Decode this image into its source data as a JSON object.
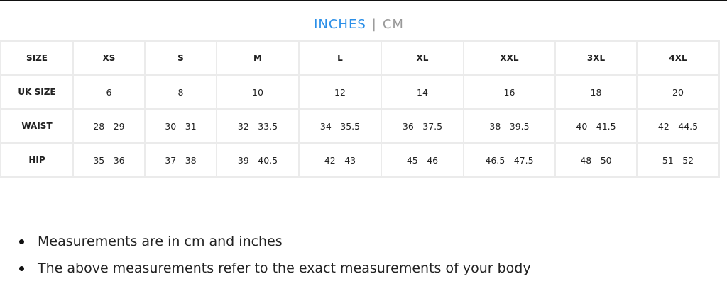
{
  "units": {
    "active": "INCHES",
    "separator": "|",
    "inactive": "CM"
  },
  "table": {
    "rows": [
      {
        "label": "SIZE",
        "values": [
          "XS",
          "S",
          "M",
          "L",
          "XL",
          "XXL",
          "3XL",
          "4XL"
        ],
        "header": true
      },
      {
        "label": "UK SIZE",
        "values": [
          "6",
          "8",
          "10",
          "12",
          "14",
          "16",
          "18",
          "20"
        ]
      },
      {
        "label": "WAIST",
        "values": [
          "28 - 29",
          "30 - 31",
          "32 - 33.5",
          "34 - 35.5",
          "36 - 37.5",
          "38 - 39.5",
          "40 - 41.5",
          "42 - 44.5"
        ]
      },
      {
        "label": "HIP",
        "values": [
          "35 - 36",
          "37 - 38",
          "39 - 40.5",
          "42 - 43",
          "45 - 46",
          "46.5 - 47.5",
          "48 - 50",
          "51 - 52"
        ]
      }
    ]
  },
  "notes": [
    "Measurements are in cm and inches",
    "The above measurements refer to the exact measurements of your body"
  ],
  "colors": {
    "accent": "#2b8fe8",
    "border": "#ebebeb"
  }
}
